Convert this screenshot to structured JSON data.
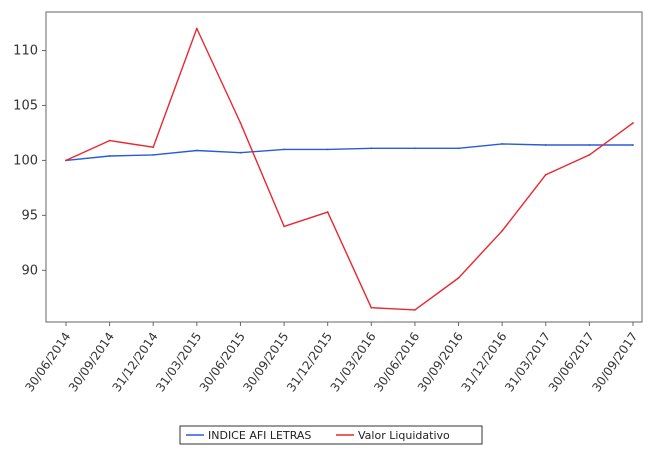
{
  "chart_data": {
    "type": "line",
    "title": "",
    "xlabel": "",
    "ylabel": "",
    "x": [
      "30/06/2014",
      "30/09/2014",
      "31/12/2014",
      "31/03/2015",
      "30/06/2015",
      "30/09/2015",
      "31/12/2015",
      "31/03/2016",
      "30/06/2016",
      "30/09/2016",
      "31/12/2016",
      "31/03/2017",
      "30/06/2017",
      "30/09/2017"
    ],
    "yticks": [
      90,
      95,
      100,
      105,
      110
    ],
    "ylim": [
      85.3,
      113.5
    ],
    "grid": false,
    "legend_position": "bottom",
    "series": [
      {
        "name": "INDICE AFI LETRAS",
        "color": "#2a5bd7",
        "values": [
          100.0,
          100.4,
          100.5,
          100.9,
          100.7,
          101.0,
          101.0,
          101.1,
          101.1,
          101.1,
          101.5,
          101.4,
          101.4,
          101.4
        ]
      },
      {
        "name": "Valor Liquidativo",
        "color": "#e8282f",
        "values": [
          100.0,
          101.8,
          101.2,
          112.0,
          103.4,
          94.0,
          95.3,
          86.6,
          86.4,
          89.3,
          93.6,
          98.7,
          100.5,
          103.4
        ]
      }
    ]
  }
}
